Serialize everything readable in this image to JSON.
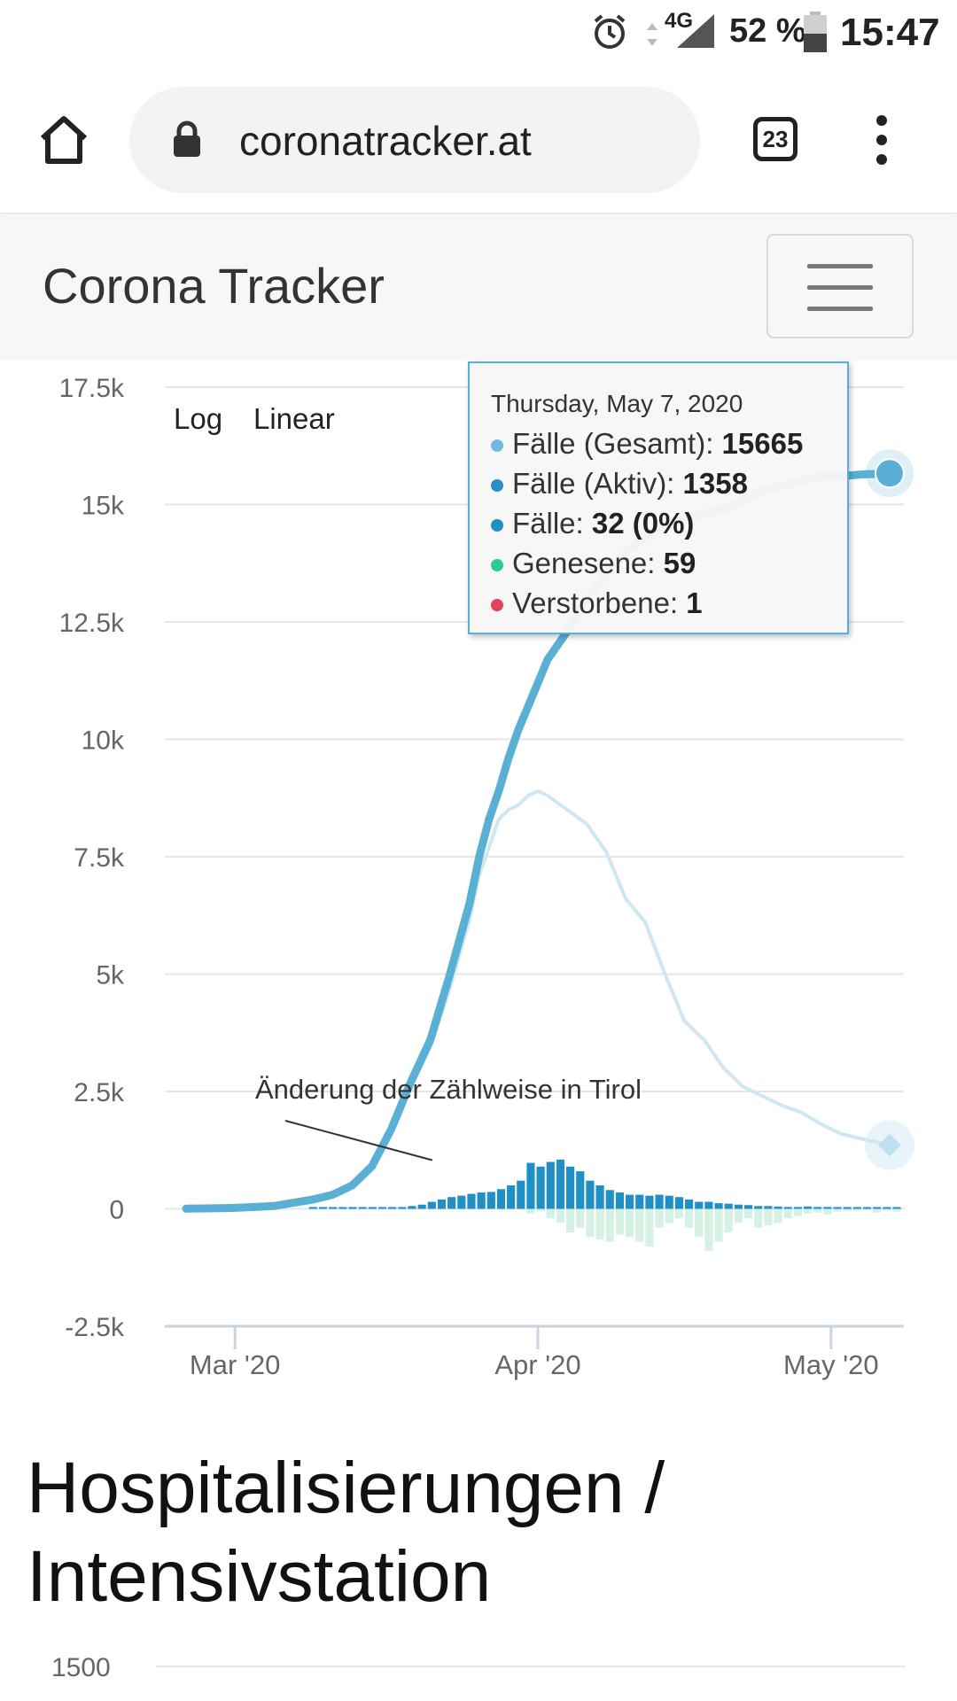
{
  "status_bar": {
    "battery": "52 %",
    "time": "15:47",
    "network": "4G"
  },
  "browser": {
    "url": "coronatracker.at",
    "tab_count": "23"
  },
  "navbar": {
    "brand": "Corona Tracker"
  },
  "scale_toggle": {
    "log": "Log",
    "linear": "Linear"
  },
  "colors": {
    "total": "#5ab0d4",
    "active": "#cfe7f3",
    "new_cases": "#1f8fc6",
    "recovered": "#d4f1e4",
    "recovered_dot": "#2ecc8f",
    "deaths_dot": "#e0435a"
  },
  "chart_data": {
    "type": "line",
    "x": [
      "2020-02-25",
      "2020-02-27",
      "2020-03-01",
      "2020-03-03",
      "2020-03-05",
      "2020-03-07",
      "2020-03-09",
      "2020-03-11",
      "2020-03-13",
      "2020-03-15",
      "2020-03-17",
      "2020-03-19",
      "2020-03-21",
      "2020-03-23",
      "2020-03-25",
      "2020-03-26",
      "2020-03-27",
      "2020-03-28",
      "2020-03-29",
      "2020-03-30",
      "2020-03-31",
      "2020-04-01",
      "2020-04-02",
      "2020-04-04",
      "2020-04-06",
      "2020-04-08",
      "2020-04-10",
      "2020-04-12",
      "2020-04-14",
      "2020-04-16",
      "2020-04-18",
      "2020-04-20",
      "2020-04-22",
      "2020-04-24",
      "2020-04-26",
      "2020-04-28",
      "2020-04-30",
      "2020-05-02",
      "2020-05-04",
      "2020-05-07"
    ],
    "series": [
      {
        "name": "Fälle (Gesamt)",
        "values": [
          3,
          10,
          20,
          40,
          60,
          130,
          200,
          300,
          500,
          900,
          1700,
          2700,
          3600,
          5000,
          6500,
          7500,
          8300,
          8900,
          9600,
          10200,
          10700,
          11200,
          11700,
          12300,
          13000,
          13500,
          14000,
          14300,
          14500,
          14700,
          14800,
          14900,
          15100,
          15300,
          15400,
          15500,
          15600,
          15600,
          15640,
          15665
        ]
      },
      {
        "name": "Fälle (Aktiv)",
        "values": [
          3,
          10,
          20,
          40,
          60,
          130,
          200,
          300,
          490,
          880,
          1650,
          2600,
          3450,
          4700,
          6150,
          7100,
          7700,
          8300,
          8500,
          8600,
          8800,
          8900,
          8800,
          8500,
          8200,
          7600,
          6600,
          6100,
          5000,
          4000,
          3600,
          3000,
          2600,
          2400,
          2200,
          2050,
          1800,
          1600,
          1500,
          1358
        ]
      }
    ],
    "new_cases": [
      0,
      0,
      0,
      0,
      0,
      0,
      0,
      5,
      20,
      30,
      60,
      90,
      150,
      200,
      250,
      280,
      320,
      350,
      360,
      420,
      500,
      600,
      980,
      900,
      1000,
      1050,
      900,
      800,
      600,
      500,
      400,
      350,
      300,
      300,
      280,
      300,
      280,
      250,
      200,
      150,
      150,
      120,
      110,
      90,
      80,
      60,
      60,
      50,
      40,
      40,
      50,
      40,
      40,
      30,
      30,
      30,
      30,
      30,
      30,
      32
    ],
    "daily_recovered": [
      0,
      0,
      0,
      0,
      0,
      0,
      0,
      0,
      0,
      0,
      0,
      0,
      0,
      0,
      0,
      0,
      0,
      0,
      0,
      0,
      0,
      0,
      -100,
      -50,
      -200,
      -300,
      -500,
      -400,
      -600,
      -650,
      -700,
      -550,
      -600,
      -700,
      -800,
      -400,
      -300,
      -200,
      -400,
      -600,
      -900,
      -700,
      -500,
      -300,
      -200,
      -400,
      -350,
      -300,
      -200,
      -150,
      -100,
      -80,
      -120,
      -60,
      -50,
      -40,
      -30,
      -80,
      -40,
      -59
    ],
    "x_tick_labels": [
      "Mar '20",
      "Apr '20",
      "May '20"
    ],
    "y_tick_labels": [
      "17.5k",
      "15k",
      "12.5k",
      "10k",
      "7.5k",
      "5k",
      "2.5k",
      "0",
      "-2.5k"
    ],
    "ylim": [
      -2500,
      17500
    ],
    "annotation": "Änderung der Zählweise in Tirol",
    "grid": true
  },
  "tooltip": {
    "date": "Thursday, May 7, 2020",
    "rows": [
      {
        "label": "Fälle (Gesamt): ",
        "value": "15665"
      },
      {
        "label": "Fälle (Aktiv): ",
        "value": "1358"
      },
      {
        "label": "Fälle: ",
        "value": "32 (0%)"
      },
      {
        "label": "Genesene: ",
        "value": "59"
      },
      {
        "label": "Verstorbene: ",
        "value": "1"
      }
    ]
  },
  "section": {
    "title": "Hospitalisierungen / Intensivstation"
  },
  "chart2": {
    "first_tick": "1500"
  }
}
